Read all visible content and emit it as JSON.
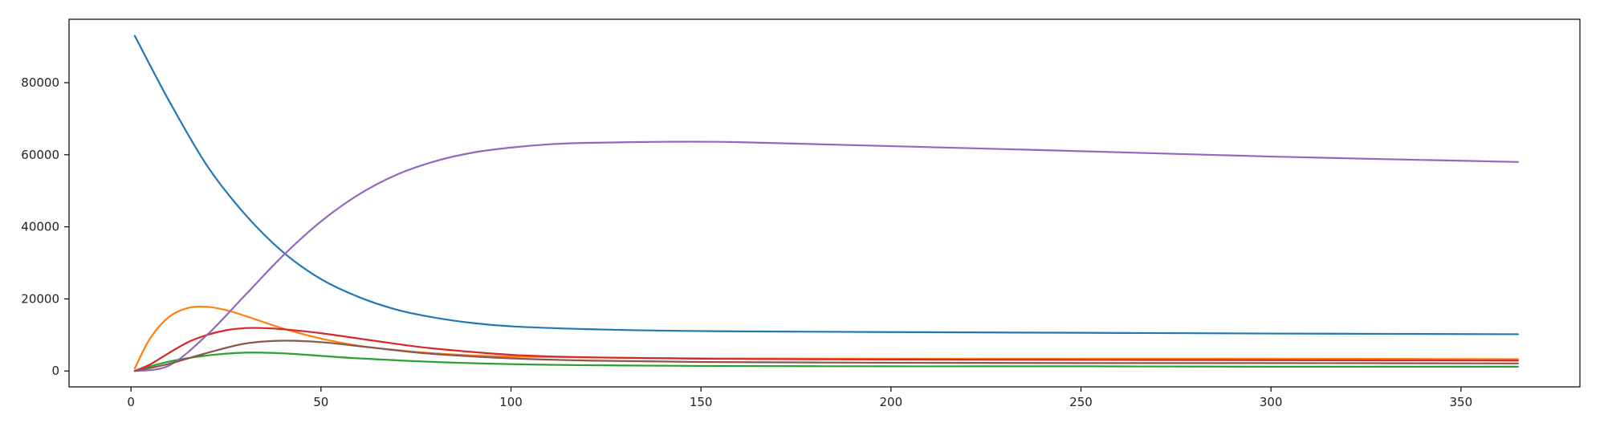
{
  "chart_data": {
    "type": "line",
    "title": "",
    "xlabel": "",
    "ylabel": "",
    "xlim": [
      -16.3,
      381.3
    ],
    "ylim": [
      -4400,
      97600
    ],
    "xticks": [
      0,
      50,
      100,
      150,
      200,
      250,
      300,
      350
    ],
    "yticks": [
      0,
      20000,
      40000,
      60000,
      80000
    ],
    "xtick_labels": [
      "0",
      "50",
      "100",
      "150",
      "200",
      "250",
      "300",
      "350"
    ],
    "ytick_labels": [
      "0",
      "20000",
      "40000",
      "60000",
      "80000"
    ],
    "grid": false,
    "legend": "none",
    "series": [
      {
        "color": "#1f77b4",
        "x": [
          1,
          10,
          20,
          30,
          40,
          50,
          60,
          70,
          80,
          90,
          100,
          120,
          140,
          160,
          200,
          250,
          300,
          365
        ],
        "y": [
          93000,
          75000,
          57000,
          43500,
          33000,
          25500,
          20500,
          17000,
          14800,
          13300,
          12400,
          11600,
          11200,
          11000,
          10800,
          10600,
          10400,
          10200
        ]
      },
      {
        "color": "#ff7f0e",
        "x": [
          1,
          5,
          10,
          15,
          20,
          25,
          30,
          40,
          50,
          60,
          70,
          80,
          100,
          150,
          200,
          250,
          300,
          365
        ],
        "y": [
          700,
          9000,
          15000,
          17500,
          17800,
          16900,
          15300,
          11800,
          9000,
          7000,
          5800,
          4900,
          4000,
          3500,
          3400,
          3400,
          3400,
          3300
        ]
      },
      {
        "color": "#2ca02c",
        "x": [
          1,
          10,
          20,
          30,
          40,
          50,
          60,
          80,
          100,
          120,
          150,
          200,
          250,
          300,
          365
        ],
        "y": [
          100,
          2600,
          4300,
          5100,
          4900,
          4200,
          3500,
          2500,
          1900,
          1600,
          1400,
          1300,
          1300,
          1200,
          1200
        ]
      },
      {
        "color": "#d62728",
        "x": [
          1,
          5,
          10,
          15,
          20,
          25,
          30,
          35,
          40,
          50,
          60,
          70,
          80,
          100,
          120,
          150,
          200,
          250,
          300,
          365
        ],
        "y": [
          0,
          1800,
          5000,
          8000,
          10000,
          11300,
          11900,
          11900,
          11600,
          10500,
          9000,
          7500,
          6200,
          4500,
          3800,
          3400,
          3200,
          3100,
          3000,
          2900
        ]
      },
      {
        "color": "#9467bd",
        "x": [
          1,
          10,
          20,
          30,
          40,
          50,
          60,
          70,
          80,
          90,
          100,
          110,
          120,
          140,
          160,
          200,
          250,
          300,
          365
        ],
        "y": [
          0,
          1500,
          10000,
          21000,
          32000,
          41500,
          49000,
          54500,
          58200,
          60600,
          62000,
          62900,
          63300,
          63600,
          63500,
          62400,
          61000,
          59500,
          58000
        ]
      },
      {
        "color": "#8c564b",
        "x": [
          1,
          10,
          20,
          30,
          40,
          50,
          60,
          70,
          80,
          100,
          120,
          150,
          200,
          250,
          300,
          365
        ],
        "y": [
          0,
          2000,
          5000,
          7600,
          8400,
          8000,
          6900,
          5700,
          4700,
          3500,
          2900,
          2500,
          2300,
          2200,
          2200,
          2100
        ]
      }
    ]
  }
}
